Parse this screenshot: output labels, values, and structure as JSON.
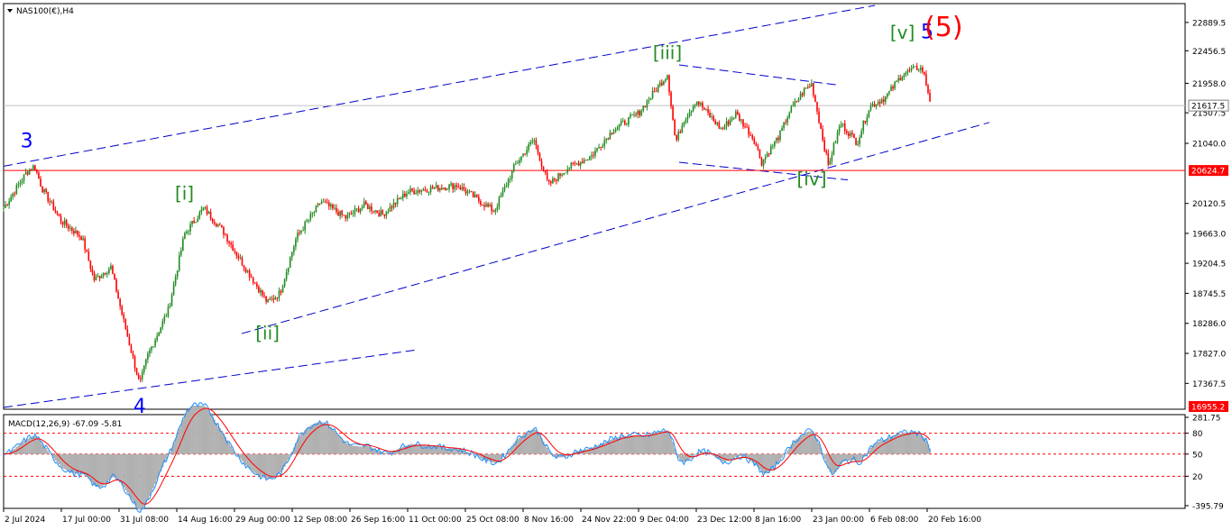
{
  "colors": {
    "background": "#ffffff",
    "up_candle": "#228b22",
    "down_candle": "#ff0000",
    "channel_line": "#0000cd",
    "level_line": "#ff0000",
    "price_line": "#c0c0c0",
    "wave_green": "#228b22",
    "wave_blue": "#0000ff",
    "wave_red": "#ff0000",
    "macd_hist": "#b0b0b0",
    "macd_main": "#1e90ff",
    "macd_signal": "#ff0000"
  },
  "chart_data": {
    "type": "candlestick",
    "symbol_label": "NAS100(€),H4",
    "ylim": [
      17000,
      23150
    ],
    "y_ticks": [
      "22889.5",
      "22456.5",
      "21958.0",
      "21507.5",
      "21040.0",
      "20624.7",
      "20120.5",
      "19663.0",
      "19204.5",
      "18745.5",
      "18286.0",
      "17827.0",
      "17367.5",
      "16955.2"
    ],
    "x_ticks": [
      "2 Jul 2024",
      "17 Jul 00:00",
      "31 Jul 08:00",
      "14 Aug 16:00",
      "29 Aug 00:00",
      "12 Sep 08:00",
      "26 Sep 16:00",
      "11 Oct 00:00",
      "25 Oct 08:00",
      "8 Nov 16:00",
      "24 Nov 22:00",
      "9 Dec 04:00",
      "23 Dec 12:00",
      "8 Jan 16:00",
      "23 Jan 00:00",
      "6 Feb 08:00",
      "20 Feb 16:00"
    ],
    "current_price": {
      "value": 21617.5,
      "label": "21617.5"
    },
    "level": {
      "value": 20624.7,
      "label": "20624.7"
    },
    "low_label": {
      "value": 16955.2,
      "label": "16955.2"
    },
    "price_path": [
      {
        "date": "2 Jul",
        "close": 20050
      },
      {
        "date": "8 Jul",
        "close": 20600
      },
      {
        "date": "10 Jul",
        "close": 20700
      },
      {
        "date": "12 Jul",
        "close": 20350
      },
      {
        "date": "17 Jul",
        "close": 19850
      },
      {
        "date": "22 Jul",
        "close": 19600
      },
      {
        "date": "25 Jul",
        "close": 18950
      },
      {
        "date": "29 Jul",
        "close": 19150
      },
      {
        "date": "1 Aug",
        "close": 18350
      },
      {
        "date": "5 Aug",
        "close": 17350
      },
      {
        "date": "7 Aug",
        "close": 17800
      },
      {
        "date": "12 Aug",
        "close": 18500
      },
      {
        "date": "16 Aug",
        "close": 19650
      },
      {
        "date": "21 Aug",
        "close": 20050
      },
      {
        "date": "26 Aug",
        "close": 19700
      },
      {
        "date": "30 Aug",
        "close": 19300
      },
      {
        "date": "6 Sep",
        "close": 18600
      },
      {
        "date": "9 Sep",
        "close": 18750
      },
      {
        "date": "13 Sep",
        "close": 19600
      },
      {
        "date": "19 Sep",
        "close": 20150
      },
      {
        "date": "25 Sep",
        "close": 19900
      },
      {
        "date": "30 Sep",
        "close": 20100
      },
      {
        "date": "4 Oct",
        "close": 19950
      },
      {
        "date": "11 Oct",
        "close": 20300
      },
      {
        "date": "17 Oct",
        "close": 20350
      },
      {
        "date": "23 Oct",
        "close": 20400
      },
      {
        "date": "1 Nov",
        "close": 20000
      },
      {
        "date": "6 Nov",
        "close": 20700
      },
      {
        "date": "11 Nov",
        "close": 21100
      },
      {
        "date": "15 Nov",
        "close": 20400
      },
      {
        "date": "20 Nov",
        "close": 20650
      },
      {
        "date": "27 Nov",
        "close": 20850
      },
      {
        "date": "2 Dec",
        "close": 21250
      },
      {
        "date": "9 Dec",
        "close": 21500
      },
      {
        "date": "16 Dec",
        "close": 22100
      },
      {
        "date": "18 Dec",
        "close": 21050
      },
      {
        "date": "20 Dec",
        "close": 21400
      },
      {
        "date": "23 Dec",
        "close": 21700
      },
      {
        "date": "30 Dec",
        "close": 21250
      },
      {
        "date": "3 Jan",
        "close": 21500
      },
      {
        "date": "8 Jan",
        "close": 21100
      },
      {
        "date": "10 Jan",
        "close": 20750
      },
      {
        "date": "15 Jan",
        "close": 21200
      },
      {
        "date": "17 Jan",
        "close": 21500
      },
      {
        "date": "21 Jan",
        "close": 21850
      },
      {
        "date": "23 Jan",
        "close": 21950
      },
      {
        "date": "27 Jan",
        "close": 20700
      },
      {
        "date": "30 Jan",
        "close": 21350
      },
      {
        "date": "3 Feb",
        "close": 21050
      },
      {
        "date": "6 Feb",
        "close": 21600
      },
      {
        "date": "10 Feb",
        "close": 21750
      },
      {
        "date": "14 Feb",
        "close": 22100
      },
      {
        "date": "18 Feb",
        "close": 22200
      },
      {
        "date": "19 Feb",
        "close": 22150
      },
      {
        "date": "21 Feb",
        "close": 21617.5
      }
    ],
    "wave_labels": [
      {
        "text": "3",
        "date": "8 Jul",
        "price": 20980,
        "color": "blue"
      },
      {
        "text": "4",
        "date": "5 Aug",
        "price": 16920,
        "color": "blue"
      },
      {
        "text": "[i]",
        "date": "16 Aug",
        "price": 20180,
        "color": "green"
      },
      {
        "text": "[ii]",
        "date": "6 Sep",
        "price": 18040,
        "color": "green"
      },
      {
        "text": "[iii]",
        "date": "16 Dec",
        "price": 22330,
        "color": "green"
      },
      {
        "text": "[iv]",
        "date": "23 Jan",
        "price": 20400,
        "color": "green"
      },
      {
        "text": "[v]",
        "date": "14 Feb",
        "price": 22640,
        "color": "green"
      },
      {
        "text": "5",
        "date": "20 Feb",
        "price": 22650,
        "color": "blue"
      },
      {
        "text": "(5)",
        "date": "24 Feb",
        "price": 22680,
        "color": "red"
      }
    ],
    "indicator": {
      "label": "MACD(12,26,9) -67.09 -5.81",
      "y_ticks": [
        "281.75",
        "80",
        "50",
        "20",
        "-395.79"
      ],
      "ylim": [
        -395.79,
        281.75
      ]
    }
  }
}
